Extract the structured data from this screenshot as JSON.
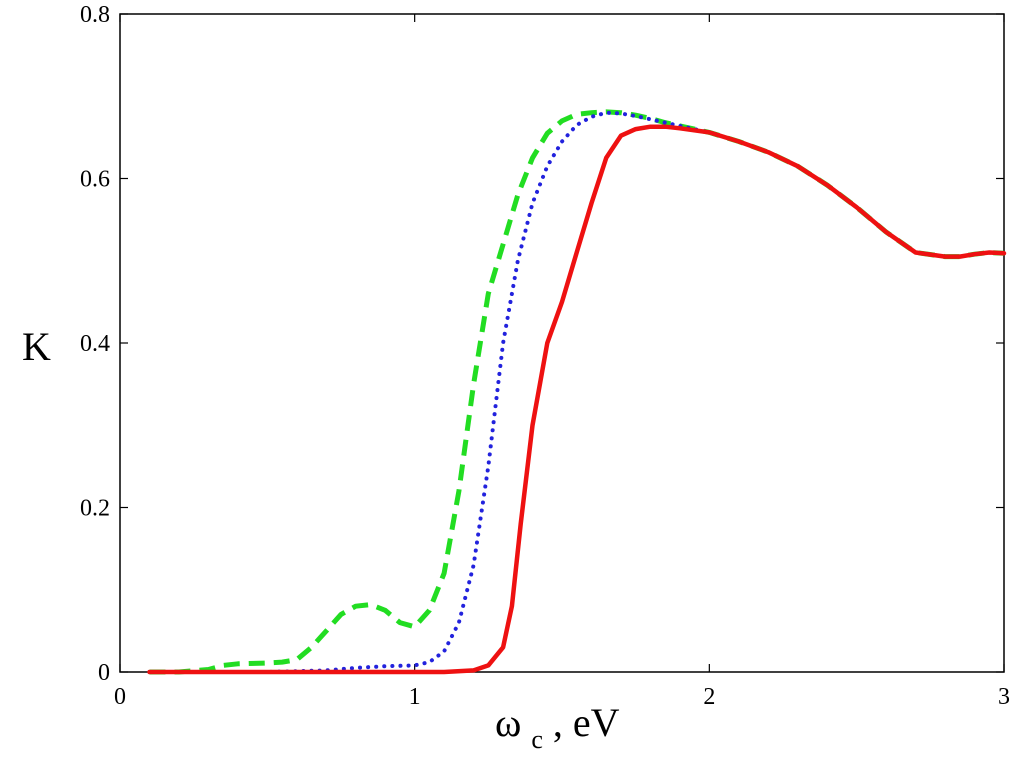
{
  "chart_data": {
    "type": "line",
    "xlabel": "ω",
    "xlabel_sub": "c",
    "xlabel_unit": ", eV",
    "ylabel": "K",
    "xlim": [
      0,
      3
    ],
    "ylim": [
      0,
      0.8
    ],
    "xticks": [
      0,
      1,
      2,
      3
    ],
    "xtick_labels": [
      "0",
      "1",
      "2",
      "3"
    ],
    "yticks": [
      0,
      0.2,
      0.4,
      0.6,
      0.8
    ],
    "ytick_labels": [
      "0",
      "0.2",
      "0.4",
      "0.6",
      "0.8"
    ],
    "grid": false,
    "series": [
      {
        "color": "#22dd22",
        "style": "dashed",
        "x": [
          0.1,
          0.2,
          0.3,
          0.35,
          0.4,
          0.5,
          0.55,
          0.6,
          0.65,
          0.7,
          0.75,
          0.8,
          0.85,
          0.9,
          0.95,
          1.0,
          1.05,
          1.1,
          1.15,
          1.2,
          1.25,
          1.3,
          1.35,
          1.4,
          1.45,
          1.5,
          1.55,
          1.6,
          1.65,
          1.7,
          1.75,
          1.8,
          1.85,
          1.9,
          2.0,
          2.1,
          2.2,
          2.3,
          2.4,
          2.5,
          2.6,
          2.7,
          2.8,
          2.85,
          2.9,
          2.95,
          3.0
        ],
        "y": [
          0.0,
          0.0,
          0.003,
          0.008,
          0.01,
          0.011,
          0.012,
          0.015,
          0.03,
          0.05,
          0.07,
          0.08,
          0.082,
          0.075,
          0.06,
          0.055,
          0.075,
          0.12,
          0.22,
          0.35,
          0.46,
          0.52,
          0.58,
          0.625,
          0.655,
          0.67,
          0.678,
          0.68,
          0.681,
          0.68,
          0.677,
          0.673,
          0.668,
          0.664,
          0.656,
          0.645,
          0.632,
          0.615,
          0.592,
          0.565,
          0.535,
          0.51,
          0.505,
          0.505,
          0.508,
          0.51,
          0.509
        ]
      },
      {
        "color": "#2222dd",
        "style": "dotted",
        "x": [
          0.1,
          0.3,
          0.5,
          0.7,
          0.8,
          0.9,
          1.0,
          1.05,
          1.1,
          1.15,
          1.2,
          1.25,
          1.3,
          1.35,
          1.4,
          1.45,
          1.5,
          1.55,
          1.6,
          1.65,
          1.7,
          1.75,
          1.8,
          1.9,
          2.0,
          2.1,
          2.2,
          2.3,
          2.4,
          2.5,
          2.6,
          2.7,
          2.8,
          2.85,
          2.9,
          2.95,
          3.0
        ],
        "y": [
          0.0,
          0.0,
          0.0,
          0.002,
          0.005,
          0.007,
          0.008,
          0.012,
          0.025,
          0.06,
          0.13,
          0.25,
          0.4,
          0.5,
          0.57,
          0.615,
          0.645,
          0.665,
          0.675,
          0.68,
          0.679,
          0.676,
          0.672,
          0.664,
          0.656,
          0.645,
          0.632,
          0.615,
          0.592,
          0.565,
          0.535,
          0.51,
          0.505,
          0.505,
          0.508,
          0.51,
          0.509
        ]
      },
      {
        "color": "#ee1111",
        "style": "solid",
        "x": [
          0.1,
          0.5,
          1.0,
          1.1,
          1.2,
          1.25,
          1.3,
          1.33,
          1.36,
          1.4,
          1.45,
          1.5,
          1.55,
          1.6,
          1.65,
          1.7,
          1.75,
          1.8,
          1.85,
          1.9,
          2.0,
          2.1,
          2.2,
          2.3,
          2.4,
          2.5,
          2.6,
          2.7,
          2.8,
          2.85,
          2.9,
          2.95,
          3.0
        ],
        "y": [
          0.0,
          0.0,
          0.0,
          0.0,
          0.002,
          0.008,
          0.03,
          0.08,
          0.18,
          0.3,
          0.4,
          0.45,
          0.51,
          0.57,
          0.625,
          0.652,
          0.66,
          0.663,
          0.663,
          0.661,
          0.656,
          0.645,
          0.632,
          0.615,
          0.592,
          0.565,
          0.535,
          0.51,
          0.505,
          0.505,
          0.508,
          0.51,
          0.509
        ]
      }
    ]
  }
}
